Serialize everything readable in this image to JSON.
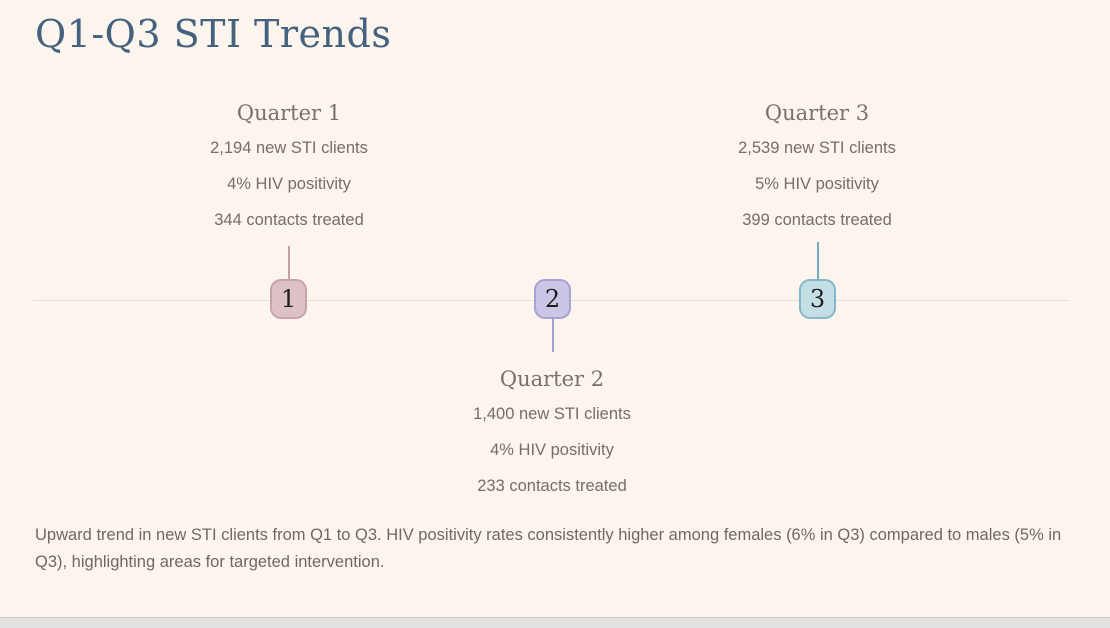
{
  "page": {
    "title": "Q1-Q3 STI Trends",
    "summary": "Upward trend in new STI clients from Q1 to Q3. HIV positivity rates consistently higher among females (6% in Q3) compared to males (5% in Q3), highlighting areas for targeted intervention."
  },
  "timeline": {
    "milestones": [
      {
        "number": "1",
        "label": "Quarter 1",
        "stats": [
          "2,194 new STI clients",
          "4% HIV positivity",
          "344 contacts treated"
        ],
        "side": "above",
        "marker_color": "#dcc2c7",
        "marker_border": "#c7a4ac",
        "stem_color": "#c29fa6"
      },
      {
        "number": "2",
        "label": "Quarter 2",
        "stats": [
          "1,400 new STI clients",
          "4% HIV positivity",
          "233 contacts treated"
        ],
        "side": "below",
        "marker_color": "#cbc6e5",
        "marker_border": "#a9a1d2",
        "stem_color": "#a69dd1"
      },
      {
        "number": "3",
        "label": "Quarter 3",
        "stats": [
          "2,539 new STI clients",
          "5% HIV positivity",
          "399 contacts treated"
        ],
        "side": "above",
        "marker_color": "#c5dee5",
        "marker_border": "#83b7c9",
        "stem_color": "#74aac0"
      }
    ]
  },
  "colors": {
    "background": "#fcf5ee",
    "title": "#44617e",
    "heading": "#7b6f68",
    "body_text": "#746e68",
    "timeline_line": "#e7e1da",
    "bottom_bar": "#e3e2e0"
  }
}
